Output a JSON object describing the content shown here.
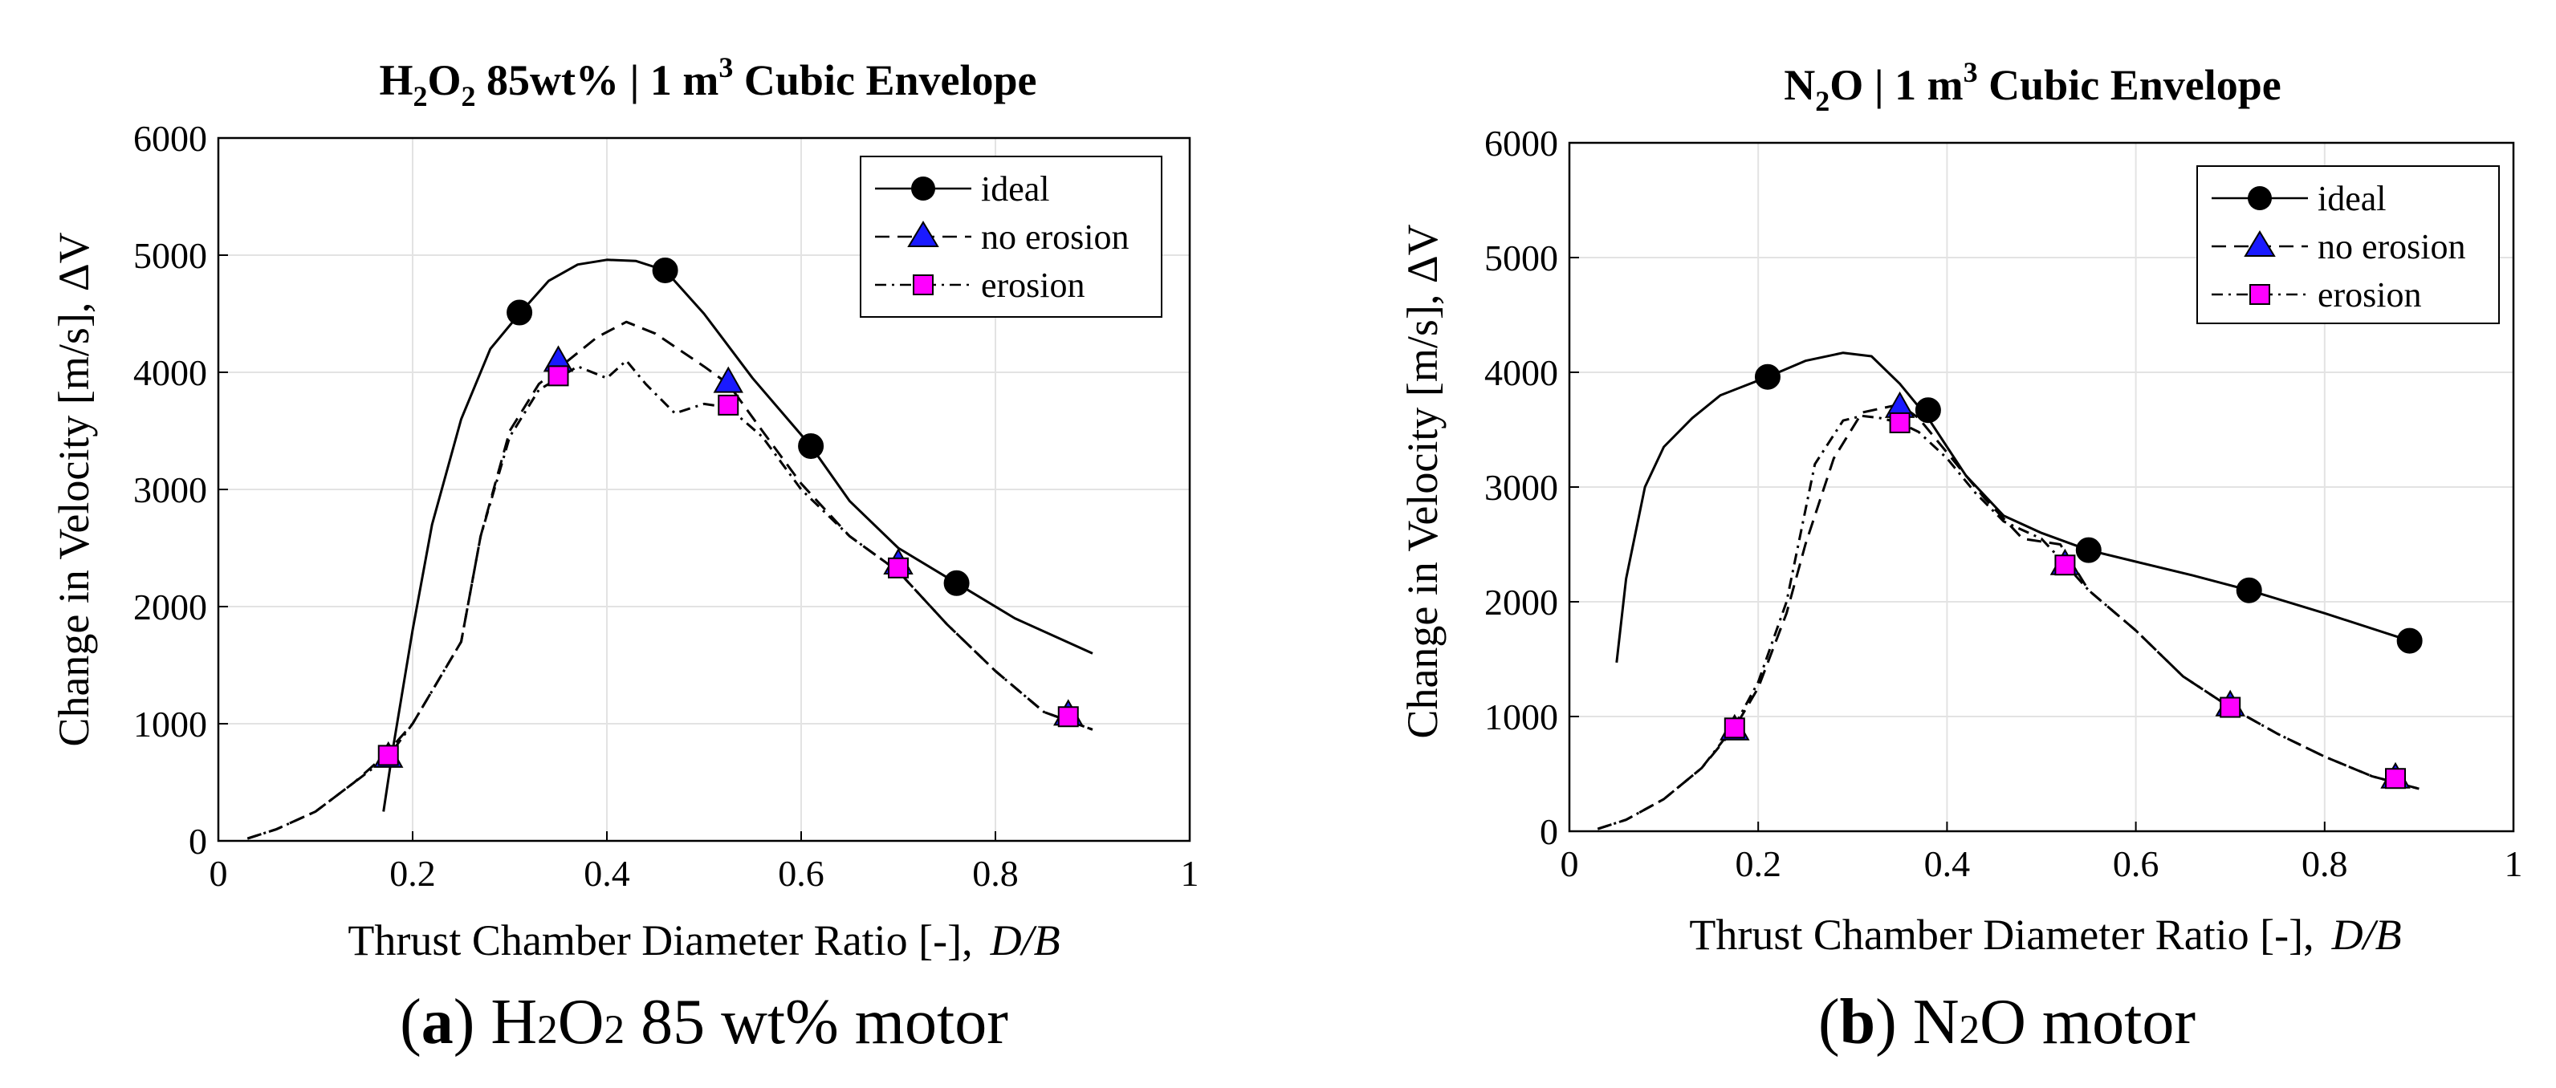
{
  "chart_data": [
    {
      "type": "line",
      "title_parts": {
        "formula": [
          "H",
          "2",
          "O",
          "2"
        ],
        "rest": " 85wt% | 1 m",
        "exp": "3",
        "tail": " Cubic Envelope"
      },
      "xlabel": "Thrust Chamber Diameter Ratio [-],",
      "xlabel_italic": "D/B",
      "ylabel": "Change in Velocity [m/s],  ΔV",
      "xlim": [
        0,
        1
      ],
      "ylim": [
        0,
        6000
      ],
      "xticks": [
        "0",
        "0.2",
        "0.4",
        "0.6",
        "0.8",
        "1"
      ],
      "yticks": [
        "0",
        "1000",
        "2000",
        "3000",
        "4000",
        "5000",
        "6000"
      ],
      "grid": true,
      "legend": "top-right",
      "series": [
        {
          "name": "ideal",
          "style": "solid",
          "marker": "circle",
          "markerColor": "#000000",
          "x": [
            0.17,
            0.18,
            0.2,
            0.22,
            0.25,
            0.28,
            0.31,
            0.34,
            0.37,
            0.4,
            0.43,
            0.46,
            0.5,
            0.55,
            0.61,
            0.65,
            0.7,
            0.76,
            0.82,
            0.9
          ],
          "y": [
            250,
            800,
            1800,
            2700,
            3600,
            4200,
            4500,
            4780,
            4920,
            4960,
            4950,
            4870,
            4500,
            3950,
            3370,
            2900,
            2500,
            2200,
            1900,
            1600
          ],
          "markers_x": [
            0.31,
            0.46,
            0.61,
            0.76
          ],
          "markers_y": [
            4510,
            4870,
            3370,
            2200
          ]
        },
        {
          "name": "no erosion",
          "style": "dashed",
          "marker": "triangle",
          "markerColor": "#1a1aff",
          "x": [
            0.03,
            0.06,
            0.1,
            0.14,
            0.17,
            0.2,
            0.225,
            0.25,
            0.27,
            0.3,
            0.33,
            0.36,
            0.39,
            0.42,
            0.45,
            0.5,
            0.525,
            0.56,
            0.6,
            0.65,
            0.7,
            0.75,
            0.8,
            0.85,
            0.9
          ],
          "y": [
            20,
            100,
            250,
            500,
            720,
            1000,
            1350,
            1700,
            2600,
            3500,
            3900,
            4100,
            4300,
            4430,
            4330,
            4050,
            3900,
            3500,
            3050,
            2600,
            2300,
            1850,
            1450,
            1100,
            950
          ],
          "markers_x": [
            0.175,
            0.35,
            0.525,
            0.7,
            0.875
          ],
          "markers_y": [
            720,
            4100,
            3920,
            2370,
            1080
          ]
        },
        {
          "name": "erosion",
          "style": "dashdot",
          "marker": "square",
          "markerColor": "#ff00ff",
          "x": [
            0.03,
            0.06,
            0.1,
            0.14,
            0.175,
            0.2,
            0.225,
            0.25,
            0.27,
            0.3,
            0.33,
            0.35,
            0.37,
            0.4,
            0.42,
            0.44,
            0.47,
            0.5,
            0.525,
            0.56,
            0.6,
            0.65,
            0.7,
            0.75,
            0.8,
            0.85,
            0.9
          ],
          "y": [
            20,
            100,
            250,
            500,
            720,
            1000,
            1350,
            1700,
            2600,
            3450,
            3850,
            3950,
            4050,
            3950,
            4100,
            3900,
            3650,
            3730,
            3700,
            3450,
            3000,
            2600,
            2300,
            1850,
            1450,
            1100,
            950
          ],
          "markers_x": [
            0.175,
            0.35,
            0.525,
            0.7,
            0.875
          ],
          "markers_y": [
            730,
            3970,
            3720,
            2330,
            1060
          ]
        }
      ]
    },
    {
      "type": "line",
      "title_parts": {
        "formula": [
          "N",
          "2",
          "O",
          ""
        ],
        "rest": " | 1 m",
        "exp": "3",
        "tail": " Cubic Envelope"
      },
      "xlabel": "Thrust Chamber Diameter Ratio [-],",
      "xlabel_italic": "D/B",
      "ylabel": "Change in Velocity [m/s],  ΔV",
      "xlim": [
        0,
        1
      ],
      "ylim": [
        0,
        6000
      ],
      "xticks": [
        "0",
        "0.2",
        "0.4",
        "0.6",
        "0.8",
        "1"
      ],
      "yticks": [
        "0",
        "1000",
        "2000",
        "3000",
        "4000",
        "5000",
        "6000"
      ],
      "grid": true,
      "legend": "top-right",
      "series": [
        {
          "name": "ideal",
          "style": "solid",
          "marker": "circle",
          "markerColor": "#000000",
          "x": [
            0.05,
            0.06,
            0.08,
            0.1,
            0.13,
            0.16,
            0.21,
            0.25,
            0.29,
            0.32,
            0.35,
            0.38,
            0.42,
            0.46,
            0.5,
            0.55,
            0.6,
            0.66,
            0.72,
            0.8,
            0.89
          ],
          "y": [
            1470,
            2200,
            3000,
            3350,
            3600,
            3800,
            3960,
            4100,
            4170,
            4140,
            3900,
            3600,
            3100,
            2750,
            2600,
            2450,
            2350,
            2230,
            2100,
            1900,
            1660
          ],
          "markers_x": [
            0.21,
            0.38,
            0.55,
            0.72,
            0.89
          ],
          "markers_y": [
            3960,
            3670,
            2450,
            2100,
            1660
          ]
        },
        {
          "name": "no erosion",
          "style": "dashed",
          "marker": "triangle",
          "markerColor": "#1a1aff",
          "x": [
            0.03,
            0.06,
            0.1,
            0.14,
            0.175,
            0.2,
            0.23,
            0.25,
            0.28,
            0.31,
            0.35,
            0.37,
            0.4,
            0.44,
            0.48,
            0.52,
            0.55,
            0.6,
            0.65,
            0.7,
            0.75,
            0.8,
            0.85,
            0.9
          ],
          "y": [
            20,
            100,
            280,
            550,
            900,
            1250,
            1900,
            2500,
            3250,
            3650,
            3720,
            3600,
            3300,
            2900,
            2550,
            2500,
            2100,
            1750,
            1350,
            1080,
            850,
            650,
            480,
            370
          ],
          "markers_x": [
            0.175,
            0.35,
            0.525,
            0.7,
            0.875
          ],
          "markers_y": [
            890,
            3700,
            2330,
            1100,
            470
          ]
        },
        {
          "name": "erosion",
          "style": "dashdot",
          "marker": "square",
          "markerColor": "#ff00ff",
          "x": [
            0.03,
            0.06,
            0.1,
            0.14,
            0.175,
            0.2,
            0.23,
            0.26,
            0.29,
            0.31,
            0.33,
            0.35,
            0.37,
            0.4,
            0.43,
            0.46,
            0.5,
            0.525,
            0.55,
            0.6,
            0.65,
            0.7,
            0.75,
            0.8,
            0.85,
            0.9
          ],
          "y": [
            20,
            100,
            280,
            550,
            920,
            1300,
            2000,
            3200,
            3580,
            3620,
            3600,
            3560,
            3480,
            3250,
            2950,
            2700,
            2550,
            2330,
            2100,
            1750,
            1350,
            1080,
            850,
            650,
            480,
            370
          ],
          "markers_x": [
            0.175,
            0.35,
            0.525,
            0.7,
            0.875
          ],
          "markers_y": [
            900,
            3560,
            2320,
            1080,
            460
          ]
        }
      ]
    }
  ],
  "captions": [
    {
      "label": "a",
      "formula": [
        "H",
        "2",
        "O",
        "2"
      ],
      "text": " 85 wt% motor"
    },
    {
      "label": "b",
      "formula": [
        "N",
        "2",
        "O",
        ""
      ],
      "text": " motor"
    }
  ]
}
